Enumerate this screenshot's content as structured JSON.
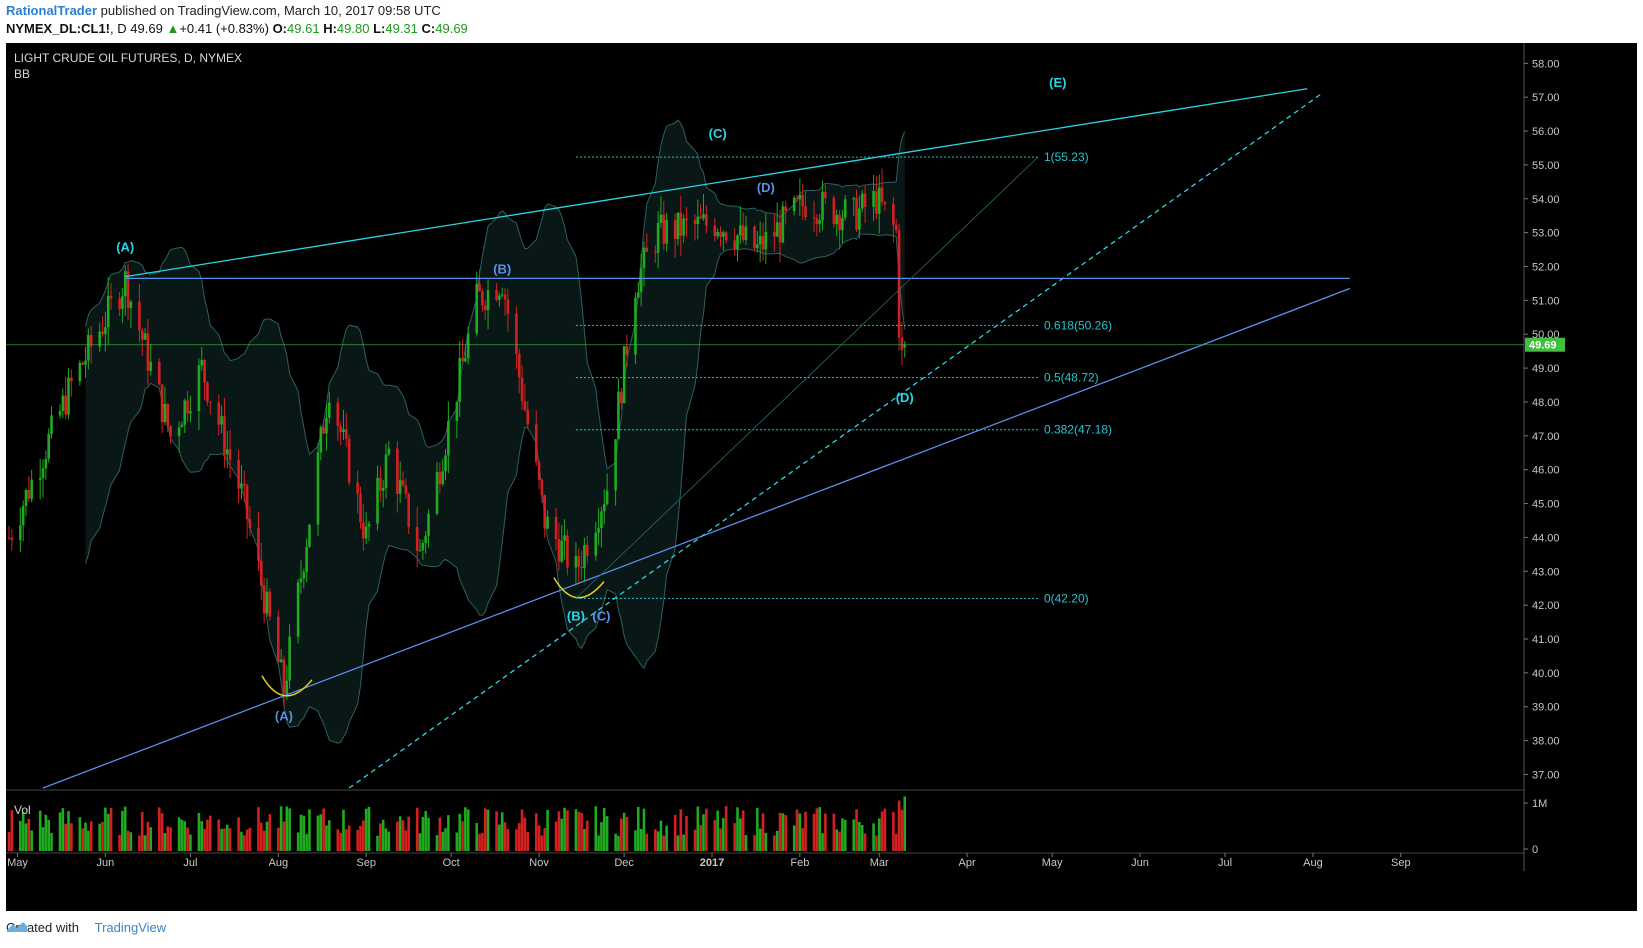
{
  "header": {
    "author": "RationalTrader",
    "published": " published on TradingView.com, March 10, 2017 09:58 UTC"
  },
  "quote": {
    "symbol": "NYMEX_DL:CL1!",
    "interval": ", D",
    "last": "49.69",
    "change_arrow": "▲",
    "change": "+0.41 (+0.83%)",
    "o_label": "O:",
    "o": "49.61",
    "h_label": "H:",
    "h": "49.80",
    "l_label": "L:",
    "l": "49.31",
    "c_label": "C:",
    "c": "49.69"
  },
  "footer": {
    "created": "Created with",
    "brand": "TradingView"
  },
  "colors": {
    "bg": "#000000",
    "up": "#1faa1f",
    "down": "#d42020",
    "wave_cyan": "#2ad6e6",
    "wave_blue": "#5a8ee6",
    "fib": "#22c5cf",
    "yellow": "#e6d21a",
    "price_tag": "#3fbf3f",
    "bb_fill": "#0a1a1a",
    "bb_line": "#2f5e5e"
  },
  "chart_data": {
    "type": "candlestick",
    "title": "LIGHT CRUDE OIL FUTURES, D, NYMEX",
    "indicator": "BB",
    "volume_label": "Vol",
    "last_price": "49.69",
    "ylim": [
      36.6,
      58.6
    ],
    "y_ticks": [
      "58.00",
      "57.00",
      "56.00",
      "55.00",
      "54.00",
      "53.00",
      "52.00",
      "51.00",
      "50.00",
      "49.00",
      "48.00",
      "47.00",
      "46.00",
      "45.00",
      "44.00",
      "43.00",
      "42.00",
      "41.00",
      "40.00",
      "39.00",
      "38.00",
      "37.00"
    ],
    "volume_ticks": [
      "1M",
      "0"
    ],
    "x_ticks": [
      "May",
      "Jun",
      "Jul",
      "Aug",
      "Sep",
      "Oct",
      "Nov",
      "Dec",
      "2017",
      "Feb",
      "Mar",
      "Apr",
      "May",
      "Jun",
      "Jul",
      "Aug",
      "Sep"
    ],
    "series_keypoints": [
      {
        "date": "2016-04-28",
        "price": 44.0
      },
      {
        "date": "2016-05-20",
        "price": 48.5
      },
      {
        "date": "2016-06-08",
        "price": 51.6
      },
      {
        "date": "2016-06-24",
        "price": 47.0
      },
      {
        "date": "2016-07-05",
        "price": 49.0
      },
      {
        "date": "2016-07-20",
        "price": 45.0
      },
      {
        "date": "2016-08-03",
        "price": 39.5
      },
      {
        "date": "2016-08-19",
        "price": 48.5
      },
      {
        "date": "2016-09-01",
        "price": 44.0
      },
      {
        "date": "2016-09-09",
        "price": 46.5
      },
      {
        "date": "2016-09-20",
        "price": 43.5
      },
      {
        "date": "2016-10-10",
        "price": 51.0
      },
      {
        "date": "2016-10-19",
        "price": 51.6
      },
      {
        "date": "2016-11-03",
        "price": 44.5
      },
      {
        "date": "2016-11-14",
        "price": 43.0
      },
      {
        "date": "2016-11-25",
        "price": 45.5
      },
      {
        "date": "2016-12-05",
        "price": 51.5
      },
      {
        "date": "2016-12-13",
        "price": 53.0
      },
      {
        "date": "2017-01-03",
        "price": 53.3
      },
      {
        "date": "2017-01-17",
        "price": 52.5
      },
      {
        "date": "2017-02-03",
        "price": 53.9
      },
      {
        "date": "2017-02-20",
        "price": 53.5
      },
      {
        "date": "2017-02-28",
        "price": 54.0
      },
      {
        "date": "2017-03-07",
        "price": 53.0
      },
      {
        "date": "2017-03-08",
        "price": 50.3
      },
      {
        "date": "2017-03-09",
        "price": 49.3
      },
      {
        "date": "2017-03-10",
        "price": 49.69
      }
    ],
    "fib_levels": [
      {
        "label": "1(55.23)",
        "value": 55.23
      },
      {
        "label": "0.618(50.26)",
        "value": 50.26
      },
      {
        "label": "0.5(48.72)",
        "value": 48.72
      },
      {
        "label": "0.382(47.18)",
        "value": 47.18
      },
      {
        "label": "0(42.20)",
        "value": 42.2
      }
    ],
    "wave_labels": [
      {
        "text": "(A)",
        "date": "2016-06-08",
        "price": 52.45,
        "color": "cyan"
      },
      {
        "text": "(A)",
        "date": "2016-08-03",
        "price": 38.6,
        "color": "blue"
      },
      {
        "text": "(B)",
        "date": "2016-10-19",
        "price": 51.8,
        "color": "blue"
      },
      {
        "text": "(B)",
        "date": "2016-11-14",
        "price": 41.55,
        "color": "cyan"
      },
      {
        "text": "(C)",
        "date": "2016-11-23",
        "price": 41.55,
        "color": "blue"
      },
      {
        "text": "(C)",
        "date": "2017-01-03",
        "price": 55.8,
        "color": "cyan"
      },
      {
        "text": "(D)",
        "date": "2017-01-20",
        "price": 54.2,
        "color": "blue"
      },
      {
        "text": "(D)",
        "date": "2017-03-10",
        "price": 48.0,
        "color": "cyan"
      },
      {
        "text": "(E)",
        "date": "2017-05-03",
        "price": 57.3,
        "color": "cyan"
      }
    ],
    "trendlines": [
      {
        "name": "upper",
        "from": {
          "date": "2016-06-08",
          "price": 51.7
        },
        "to": {
          "date": "2017-07-30",
          "price": 57.25
        },
        "style": "solid",
        "color": "cyan"
      },
      {
        "name": "lower",
        "from": {
          "date": "2016-05-10",
          "price": 36.6
        },
        "to": {
          "date": "2017-08-14",
          "price": 51.35
        },
        "style": "solid",
        "color": "blue"
      },
      {
        "name": "inner",
        "from": {
          "date": "2016-08-26",
          "price": 36.6
        },
        "to": {
          "date": "2017-08-04",
          "price": 57.1
        },
        "style": "dashed",
        "color": "cyan"
      },
      {
        "name": "horizontal",
        "from": {
          "date": "2016-06-08",
          "price": 51.65
        },
        "to": {
          "date": "2017-08-14",
          "price": 51.65
        },
        "style": "solid",
        "color": "blue"
      }
    ]
  }
}
